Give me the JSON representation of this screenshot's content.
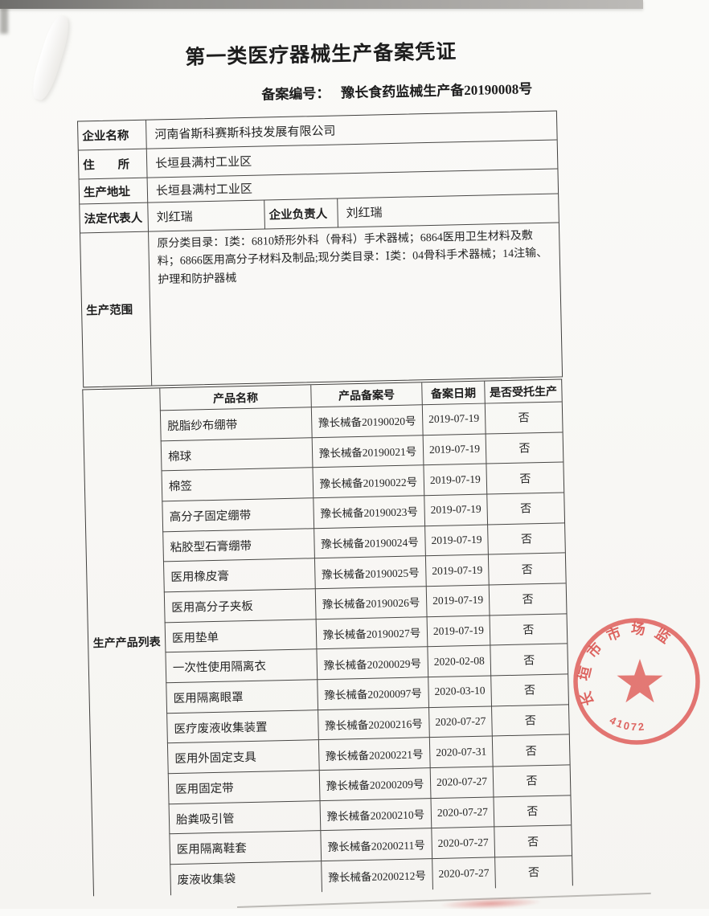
{
  "certificate": {
    "title": "第一类医疗器械生产备案凭证",
    "filing_no_label": "备案编号：",
    "filing_no_value": "豫长食药监械生产备20190008号"
  },
  "company_info": {
    "name_label": "企业名称",
    "name_value": "河南省斯科赛斯科技发展有限公司",
    "residence_label": "住　　所",
    "residence_value": "长垣县满村工业区",
    "production_address_label": "生产地址",
    "production_address_value": "长垣县满村工业区",
    "legal_representative_label": "法定代表人",
    "legal_representative_value": "刘红瑞",
    "enterprise_manager_label": "企业负责人",
    "enterprise_manager_value": "刘红瑞",
    "production_scope_label": "生产范围",
    "production_scope_value": "原分类目录：Ⅰ类：6810矫形外科（骨科）手术器械；6864医用卫生材料及敷料；6866医用高分子材料及制品;现分类目录：Ⅰ类：04骨科手术器械；14注输、护理和防护器械"
  },
  "products": {
    "section_label": "生产产品列表",
    "columns": [
      "产品名称",
      "产品备案号",
      "备案日期",
      "是否受托生产"
    ],
    "rows": [
      [
        "脱脂纱布绷带",
        "豫长械备20190020号",
        "2019-07-19",
        "否"
      ],
      [
        "棉球",
        "豫长械备20190021号",
        "2019-07-19",
        "否"
      ],
      [
        "棉签",
        "豫长械备20190022号",
        "2019-07-19",
        "否"
      ],
      [
        "高分子固定绷带",
        "豫长械备20190023号",
        "2019-07-19",
        "否"
      ],
      [
        "粘胶型石膏绷带",
        "豫长械备20190024号",
        "2019-07-19",
        "否"
      ],
      [
        "医用橡皮膏",
        "豫长械备20190025号",
        "2019-07-19",
        "否"
      ],
      [
        "医用高分子夹板",
        "豫长械备20190026号",
        "2019-07-19",
        "否"
      ],
      [
        "医用垫单",
        "豫长械备20190027号",
        "2019-07-19",
        "否"
      ],
      [
        "一次性使用隔离衣",
        "豫长械备20200029号",
        "2020-02-08",
        "否"
      ],
      [
        "医用隔离眼罩",
        "豫长械备20200097号",
        "2020-03-10",
        "否"
      ],
      [
        "医疗废液收集装置",
        "豫长械备20200216号",
        "2020-07-27",
        "否"
      ],
      [
        "医用外固定支具",
        "豫长械备20200221号",
        "2020-07-31",
        "否"
      ],
      [
        "医用固定带",
        "豫长械备20200209号",
        "2020-07-27",
        "否"
      ],
      [
        "胎粪吸引管",
        "豫长械备20200210号",
        "2020-07-27",
        "否"
      ],
      [
        "医用隔离鞋套",
        "豫长械备20200211号",
        "2020-07-27",
        "否"
      ],
      [
        "废液收集袋",
        "豫长械备20200212号",
        "2020-07-27",
        "否"
      ]
    ]
  },
  "stamp": {
    "arc_text": "长垣市市场监",
    "serial": "41072",
    "color": "#d8544e"
  }
}
